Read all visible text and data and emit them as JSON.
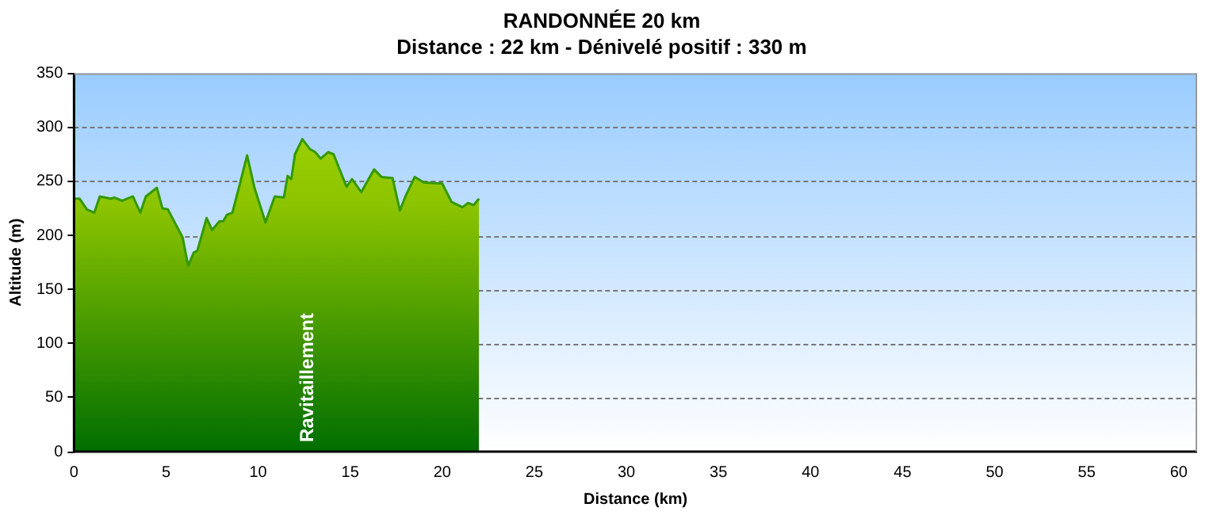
{
  "chart_data": {
    "type": "area",
    "title": "RANDONNÉE 20 km",
    "subtitle": "Distance : 22 km - Dénivelé positif : 330 m",
    "xlabel": "Distance (km)",
    "ylabel": "Altitude (m)",
    "x": [
      0,
      0.3,
      0.7,
      1.1,
      1.4,
      2.0,
      2.2,
      2.6,
      3.2,
      3.6,
      3.9,
      4.5,
      4.8,
      5.1,
      5.5,
      5.9,
      6.2,
      6.5,
      6.7,
      7.2,
      7.5,
      7.9,
      8.1,
      8.3,
      8.6,
      9.0,
      9.4,
      9.8,
      10.4,
      10.9,
      11.4,
      11.6,
      11.8,
      12.0,
      12.4,
      12.8,
      13.1,
      13.4,
      13.8,
      14.1,
      14.4,
      14.8,
      15.1,
      15.6,
      16.3,
      16.7,
      17.3,
      17.7,
      18.0,
      18.5,
      19.0,
      19.8,
      20.0,
      20.5,
      21.1,
      21.4,
      21.7,
      22.0
    ],
    "series": [
      {
        "color": "#339900",
        "values": [
          234,
          234,
          224,
          221,
          236,
          234,
          235,
          232,
          236,
          221,
          236,
          244,
          225,
          224,
          211,
          198,
          172,
          184,
          186,
          216,
          205,
          213,
          213,
          219,
          221,
          247,
          274,
          244,
          212,
          236,
          235,
          255,
          252,
          275,
          289,
          280,
          277,
          271,
          277,
          275,
          262,
          245,
          252,
          240,
          261,
          254,
          253,
          223,
          236,
          254,
          249,
          248,
          248,
          231,
          226,
          230,
          228,
          234
        ]
      }
    ],
    "xlim": [
      0,
      61
    ],
    "xticks": [
      0,
      5,
      10,
      15,
      20,
      25,
      30,
      35,
      40,
      45,
      50,
      55,
      60
    ],
    "ylim": [
      0,
      350
    ],
    "yticks": [
      0,
      50,
      100,
      150,
      200,
      250,
      300,
      350
    ],
    "grid": "y",
    "legend": false,
    "marker": "none",
    "line_style": "solid",
    "annotations": [
      {
        "text": "Ravitaillement",
        "x": 12.7,
        "y": 0
      }
    ]
  }
}
